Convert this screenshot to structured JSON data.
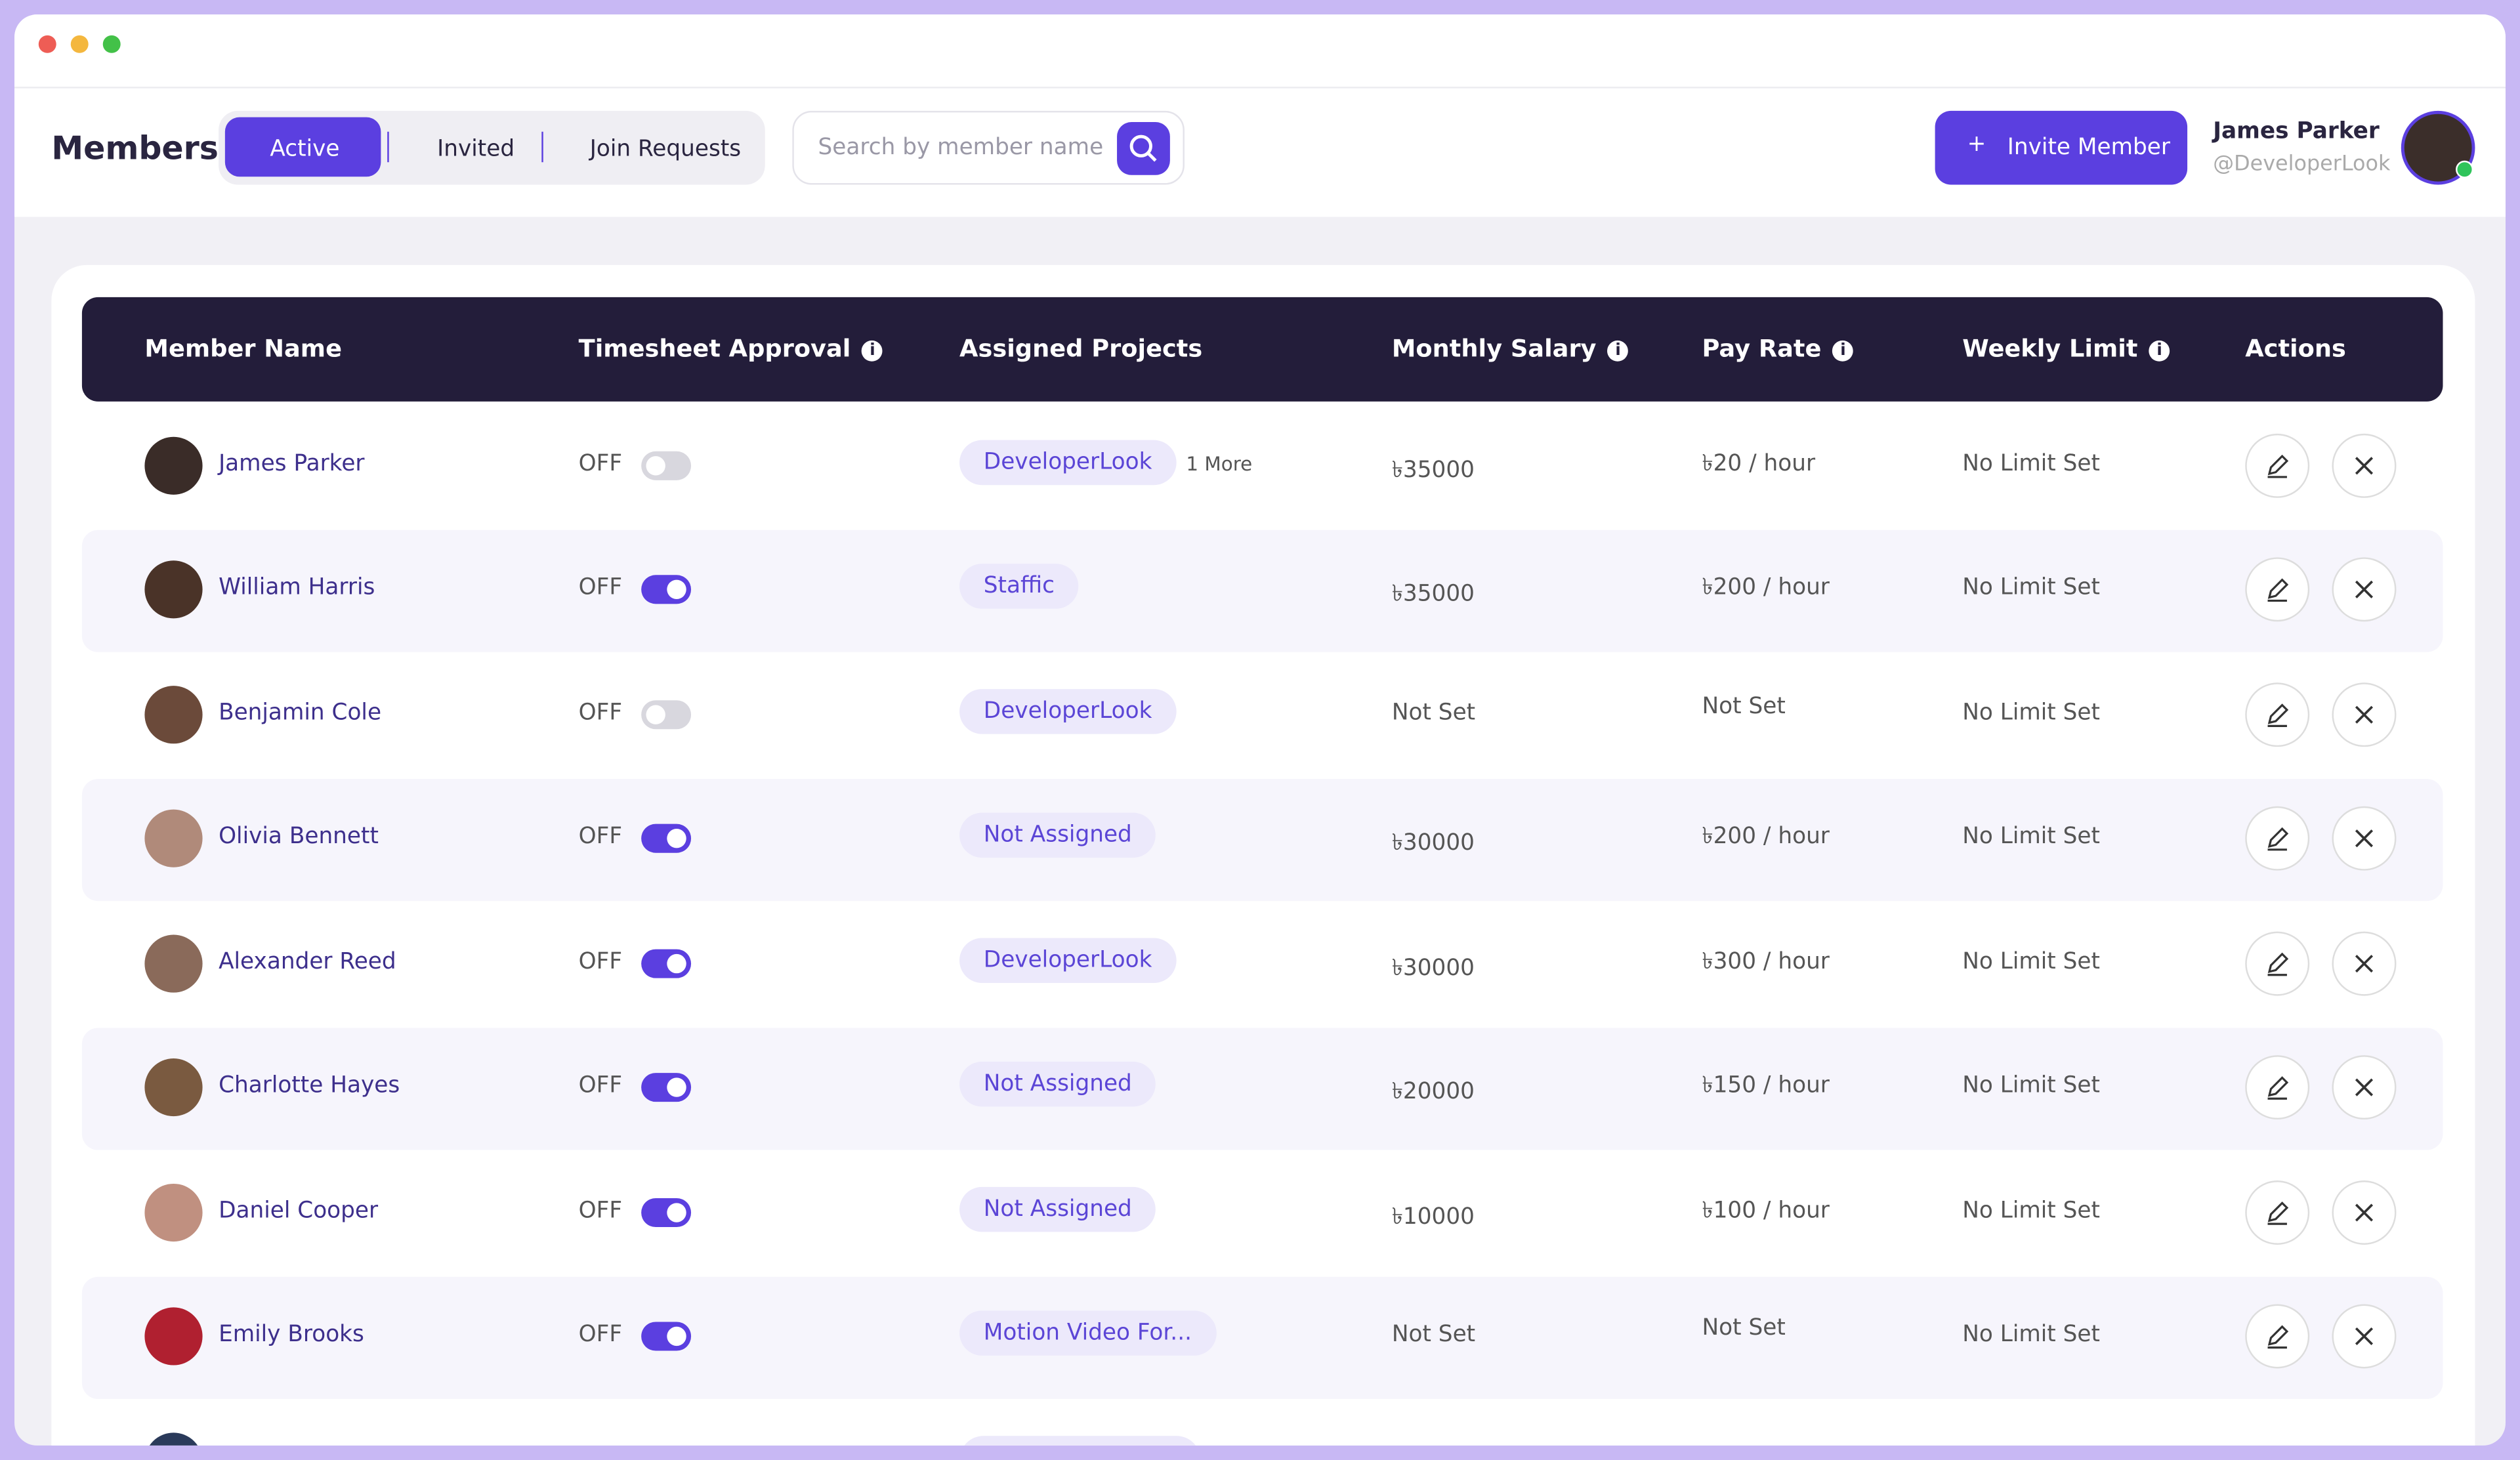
{
  "header": {
    "title": "Members",
    "tabs": [
      "Active",
      "Invited",
      "Join Requests"
    ],
    "active_tab": 0,
    "search_placeholder": "Search by member name",
    "invite_button": "Invite Member",
    "user": {
      "name": "James Parker",
      "handle": "@DeveloperLook"
    }
  },
  "table": {
    "columns": [
      {
        "label": "Member Name",
        "info": false
      },
      {
        "label": "Timesheet Approval",
        "info": true
      },
      {
        "label": "Assigned Projects",
        "info": false
      },
      {
        "label": "Monthly Salary",
        "info": true
      },
      {
        "label": "Pay Rate",
        "info": true
      },
      {
        "label": "Weekly Limit",
        "info": true
      },
      {
        "label": "Actions",
        "info": false
      }
    ],
    "rows": [
      {
        "name": "James Parker",
        "approval": "OFF",
        "toggle_on": false,
        "project": "DeveloperLook",
        "more": "1 More",
        "salary": "৳35000",
        "pay_rate": "৳20 / hour",
        "weekly_limit": "No Limit Set"
      },
      {
        "name": "William Harris",
        "approval": "OFF",
        "toggle_on": true,
        "project": "Staffic",
        "salary": "৳35000",
        "pay_rate": "৳200 / hour",
        "weekly_limit": "No Limit Set"
      },
      {
        "name": "Benjamin Cole",
        "approval": "OFF",
        "toggle_on": false,
        "project": "DeveloperLook",
        "salary": "Not Set",
        "pay_rate": "Not Set",
        "weekly_limit": "No Limit Set"
      },
      {
        "name": "Olivia Bennett",
        "approval": "OFF",
        "toggle_on": true,
        "project": "Not Assigned",
        "salary": "৳30000",
        "pay_rate": "৳200 / hour",
        "weekly_limit": "No Limit Set"
      },
      {
        "name": "Alexander Reed",
        "approval": "OFF",
        "toggle_on": true,
        "project": "DeveloperLook",
        "salary": "৳30000",
        "pay_rate": "৳300 / hour",
        "weekly_limit": "No Limit Set"
      },
      {
        "name": "Charlotte Hayes",
        "approval": "OFF",
        "toggle_on": true,
        "project": "Not Assigned",
        "salary": "৳20000",
        "pay_rate": "৳150 / hour",
        "weekly_limit": "No Limit Set"
      },
      {
        "name": "Daniel Cooper",
        "approval": "OFF",
        "toggle_on": true,
        "project": "Not Assigned",
        "salary": "৳10000",
        "pay_rate": "৳100 / hour",
        "weekly_limit": "No Limit Set"
      },
      {
        "name": "Emily Brooks",
        "approval": "OFF",
        "toggle_on": true,
        "project": "Motion Video For...",
        "salary": "Not Set",
        "pay_rate": "Not Set",
        "weekly_limit": "No Limit Set"
      }
    ]
  }
}
